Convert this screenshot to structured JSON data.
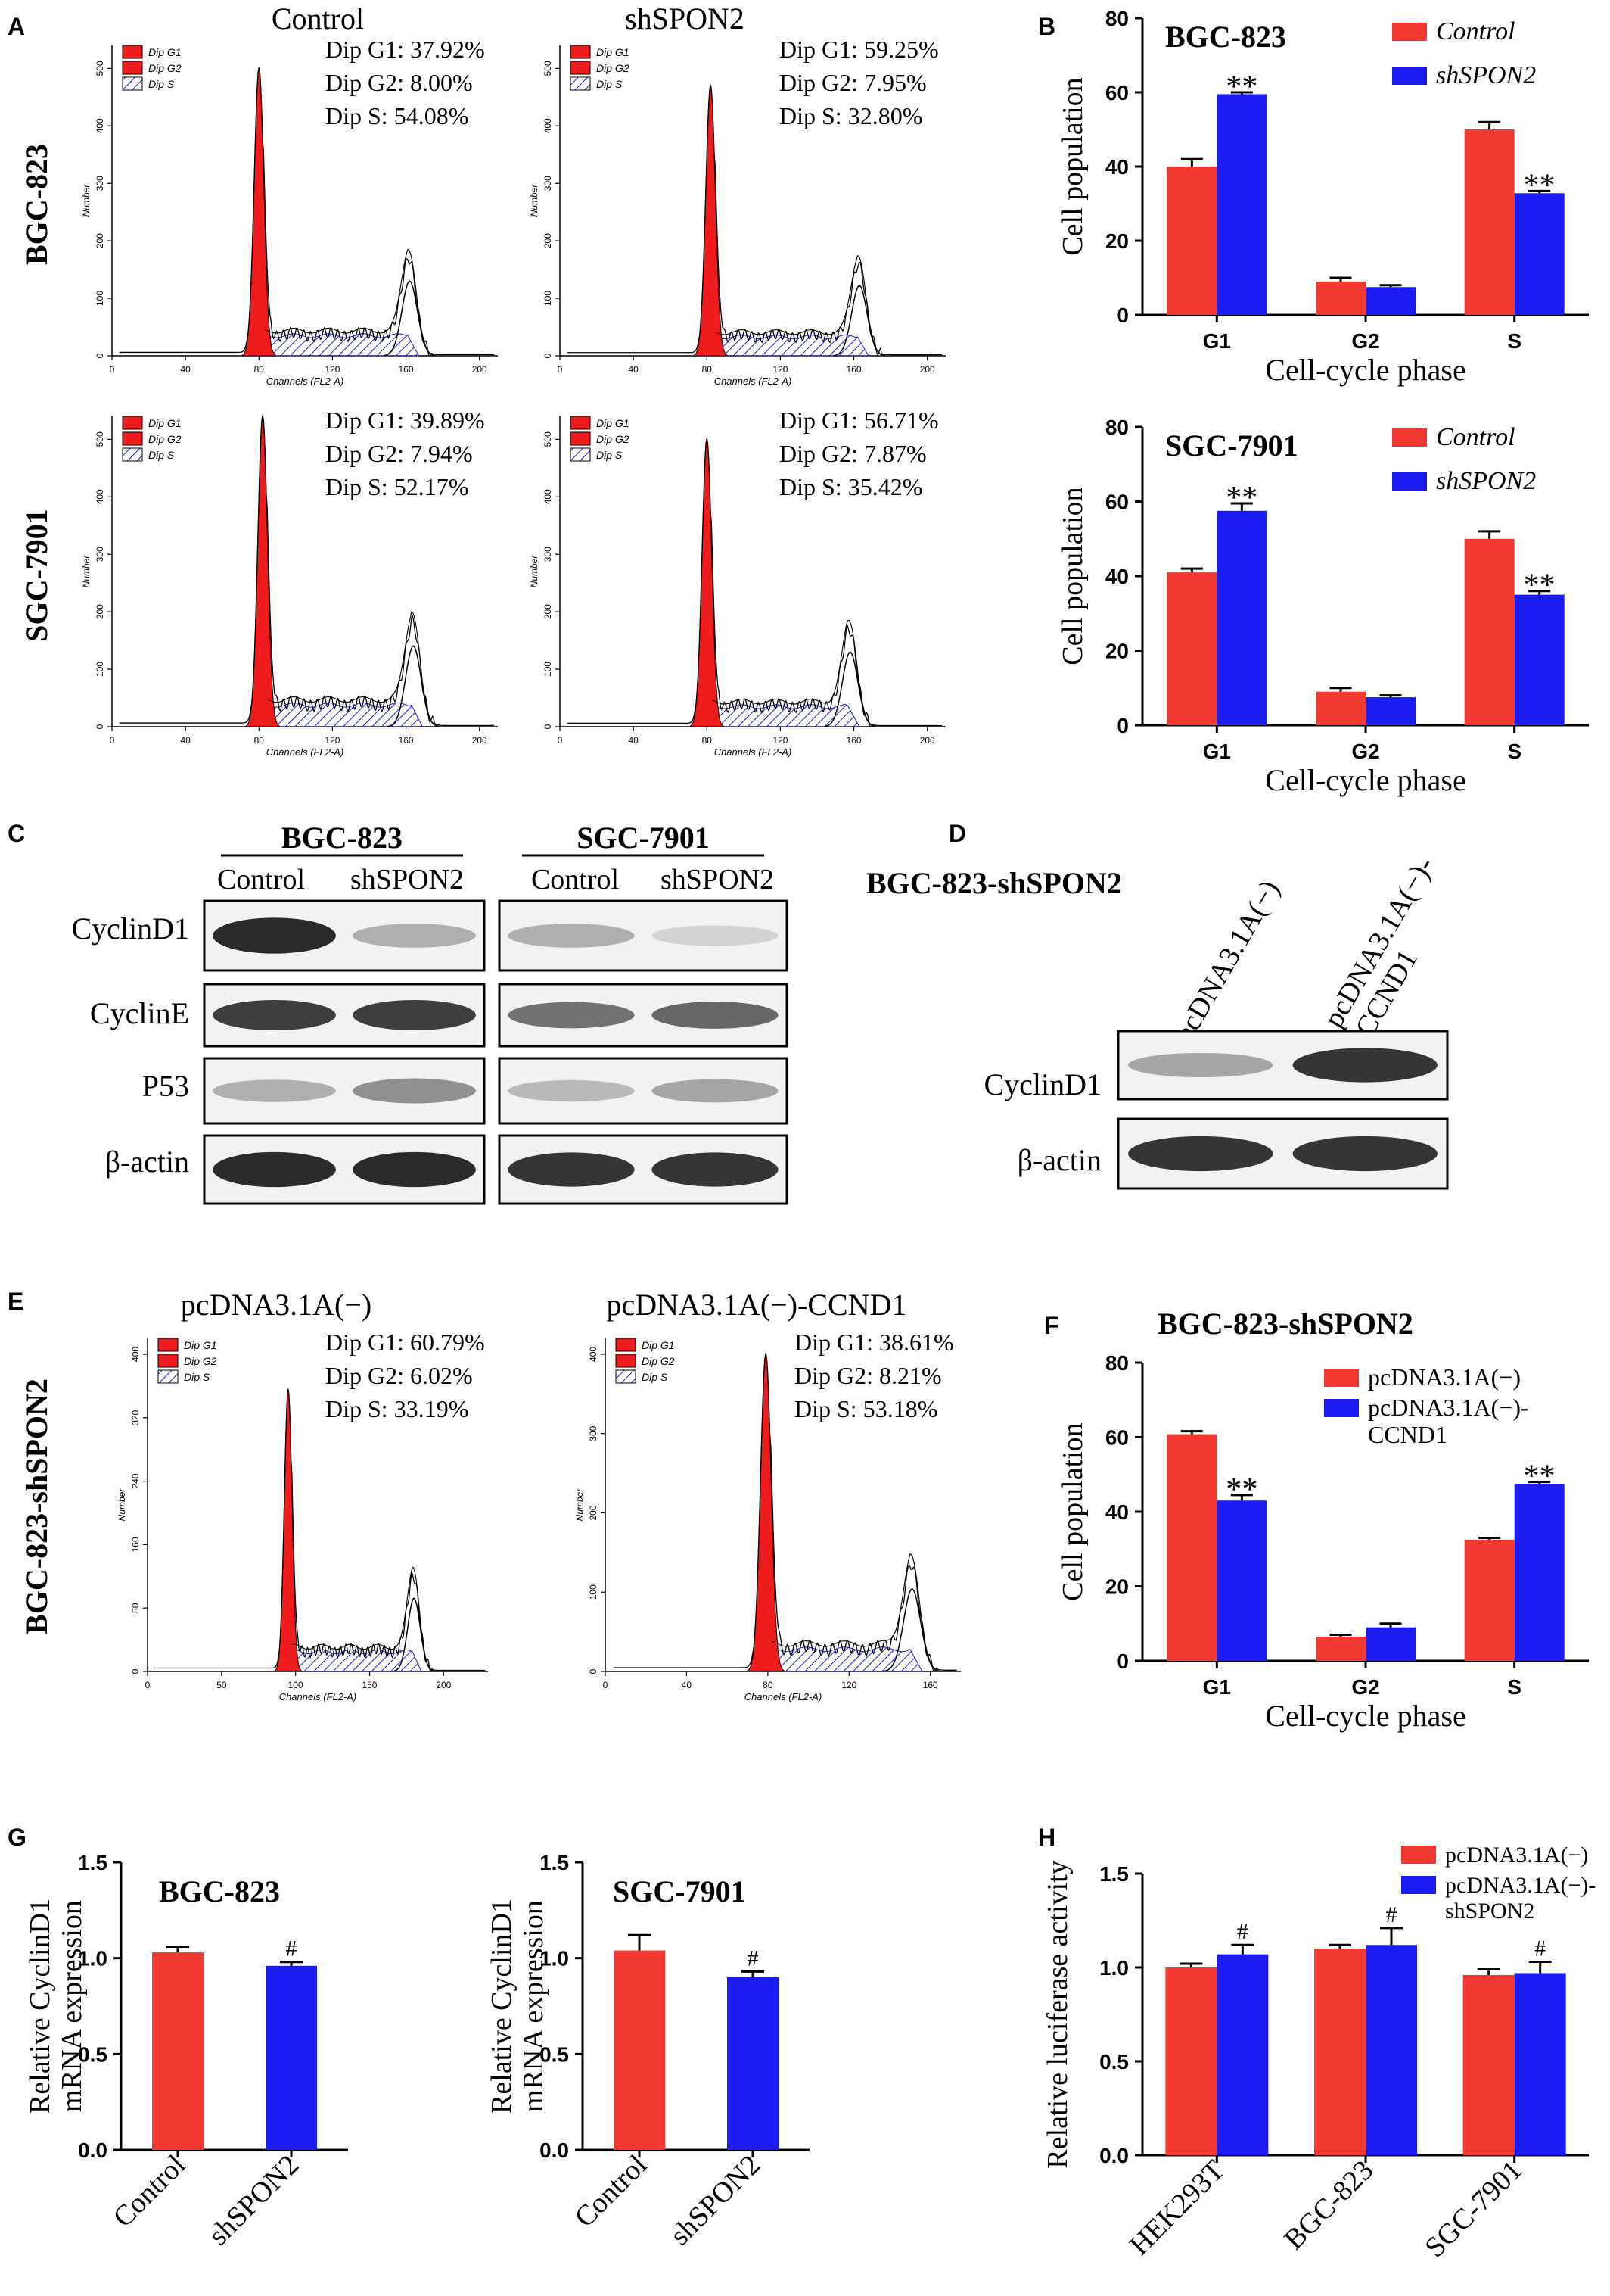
{
  "panel_letters": [
    "A",
    "B",
    "C",
    "D",
    "E",
    "F",
    "G",
    "H"
  ],
  "colors": {
    "red": "#f33a32",
    "blue": "#1b1bf2",
    "hist_red": "#ee1c1c",
    "hatch": "#1a1ad8",
    "legend_text": "#2a2aff"
  },
  "panelA": {
    "col_labels": [
      "Control",
      "shSPON2"
    ],
    "row_labels": [
      "BGC-823",
      "SGC-7901"
    ],
    "x_label": "Channels (FL2-A)",
    "y_label": "Number",
    "legend": [
      "Dip G1",
      "Dip G2",
      "Dip S"
    ],
    "histograms": [
      {
        "stats": [
          "Dip G1: 37.92%",
          "Dip G2: 8.00%",
          "Dip S: 54.08%"
        ],
        "x_ticks": [
          "0",
          "40",
          "80",
          "120",
          "160",
          "200"
        ],
        "y_ticks": [
          "0",
          "100",
          "200",
          "300",
          "400",
          "500"
        ],
        "g1_peak": 80,
        "g2_peak": 162,
        "ymax": 540,
        "peak_height": 500
      },
      {
        "stats": [
          "Dip G1: 59.25%",
          "Dip G2: 7.95%",
          "Dip S: 32.80%"
        ],
        "x_ticks": [
          "0",
          "40",
          "80",
          "120",
          "160",
          "200"
        ],
        "y_ticks": [
          "0",
          "100",
          "200",
          "300",
          "400",
          "500"
        ],
        "g1_peak": 82,
        "g2_peak": 163,
        "ymax": 540,
        "peak_height": 470
      },
      {
        "stats": [
          "Dip G1: 39.89%",
          "Dip G2: 7.94%",
          "Dip S: 52.17%"
        ],
        "x_ticks": [
          "0",
          "40",
          "80",
          "120",
          "160",
          "200"
        ],
        "y_ticks": [
          "0",
          "100",
          "200",
          "300",
          "400",
          "500"
        ],
        "g1_peak": 82,
        "g2_peak": 164,
        "ymax": 540,
        "peak_height": 540
      },
      {
        "stats": [
          "Dip G1: 56.71%",
          "Dip G2: 7.87%",
          "Dip S: 35.42%"
        ],
        "x_ticks": [
          "0",
          "40",
          "80",
          "120",
          "160",
          "200"
        ],
        "y_ticks": [
          "0",
          "100",
          "200",
          "300",
          "400",
          "500"
        ],
        "g1_peak": 80,
        "g2_peak": 158,
        "ymax": 540,
        "peak_height": 500
      }
    ]
  },
  "chart_data": [
    {
      "id": "B1",
      "type": "bar",
      "title": "BGC-823",
      "categories": [
        "G1",
        "G2",
        "S"
      ],
      "series": [
        {
          "name": "Control",
          "values": [
            40,
            9,
            50
          ],
          "errors": [
            2,
            1,
            2
          ]
        },
        {
          "name": "shSPON2",
          "values": [
            59.5,
            7.5,
            32.8
          ],
          "errors": [
            0.5,
            0.5,
            0.6
          ]
        }
      ],
      "significance": [
        [
          "",
          "**"
        ],
        [
          "",
          ""
        ],
        [
          "",
          "**"
        ]
      ],
      "xlabel": "Cell-cycle phase",
      "ylabel": "Cell population",
      "ylim": [
        0,
        80
      ],
      "yticks": [
        "0",
        "20",
        "40",
        "60",
        "80"
      ],
      "legend": "top-right"
    },
    {
      "id": "B2",
      "type": "bar",
      "title": "SGC-7901",
      "categories": [
        "G1",
        "G2",
        "S"
      ],
      "series": [
        {
          "name": "Control",
          "values": [
            41,
            9,
            50
          ],
          "errors": [
            1,
            1,
            2
          ]
        },
        {
          "name": "shSPON2",
          "values": [
            57.5,
            7.5,
            35
          ],
          "errors": [
            2,
            0.5,
            1
          ]
        }
      ],
      "significance": [
        [
          "",
          "**"
        ],
        [
          "",
          ""
        ],
        [
          "",
          "**"
        ]
      ],
      "xlabel": "Cell-cycle phase",
      "ylabel": "Cell population",
      "ylim": [
        0,
        80
      ],
      "yticks": [
        "0",
        "20",
        "40",
        "60",
        "80"
      ],
      "legend": "top-right"
    },
    {
      "id": "F",
      "type": "bar",
      "title": "BGC-823-shSPON2",
      "categories": [
        "G1",
        "G2",
        "S"
      ],
      "series": [
        {
          "name": "pcDNA3.1A(−)",
          "values": [
            60.8,
            6.5,
            32.5
          ],
          "errors": [
            0.8,
            0.5,
            0.5
          ]
        },
        {
          "name": "pcDNA3.1A(−)-CCND1",
          "values": [
            43,
            9,
            47.5
          ],
          "errors": [
            1.5,
            1,
            0.5
          ]
        }
      ],
      "significance": [
        [
          "",
          "**"
        ],
        [
          "",
          ""
        ],
        [
          "",
          "**"
        ]
      ],
      "xlabel": "Cell-cycle phase",
      "ylabel": "Cell population",
      "ylim": [
        0,
        80
      ],
      "yticks": [
        "0",
        "20",
        "40",
        "60",
        "80"
      ],
      "legend": "top-right"
    },
    {
      "id": "G1",
      "type": "bar",
      "title": "BGC-823",
      "categories": [
        "Control",
        "shSPON2"
      ],
      "values": [
        1.03,
        0.96
      ],
      "errors": [
        0.03,
        0.02
      ],
      "significance": [
        "",
        "#"
      ],
      "xlabel": "",
      "ylabel": "Relative CyclinD1 mRNA expression",
      "ylim": [
        0,
        1.5
      ],
      "yticks": [
        "0.0",
        "0.5",
        "1.0",
        "1.5"
      ]
    },
    {
      "id": "G2",
      "type": "bar",
      "title": "SGC-7901",
      "categories": [
        "Control",
        "shSPON2"
      ],
      "values": [
        1.04,
        0.9
      ],
      "errors": [
        0.08,
        0.03
      ],
      "significance": [
        "",
        "#"
      ],
      "xlabel": "",
      "ylabel": "Relative CyclinD1 mRNA expression",
      "ylim": [
        0,
        1.5
      ],
      "yticks": [
        "0.0",
        "0.5",
        "1.0",
        "1.5"
      ]
    },
    {
      "id": "H",
      "type": "bar",
      "title": "",
      "categories": [
        "HEK293T",
        "BGC-823",
        "SGC-7901"
      ],
      "series": [
        {
          "name": "pcDNA3.1A(−)",
          "values": [
            1.0,
            1.1,
            0.96
          ],
          "errors": [
            0.02,
            0.02,
            0.03
          ]
        },
        {
          "name": "pcDNA3.1A(−)-shSPON2",
          "values": [
            1.07,
            1.12,
            0.97
          ],
          "errors": [
            0.05,
            0.09,
            0.06
          ]
        }
      ],
      "significance": [
        [
          "",
          "#"
        ],
        [
          "",
          "#"
        ],
        [
          "",
          "#"
        ]
      ],
      "xlabel": "",
      "ylabel": "Relative luciferase activity",
      "ylim": [
        0,
        1.5
      ],
      "yticks": [
        "0.0",
        "0.5",
        "1.0",
        "1.5"
      ],
      "legend": "top-right"
    }
  ],
  "panelC": {
    "groups": [
      "BGC-823",
      "SGC-7901"
    ],
    "lanes": [
      "Control",
      "shSPON2"
    ],
    "proteins": [
      "CyclinD1",
      "CyclinE",
      "P53",
      "β-actin"
    ],
    "intensity": [
      [
        [
          0.95,
          0.3
        ],
        [
          0.3,
          0.12
        ]
      ],
      [
        [
          0.85,
          0.85
        ],
        [
          0.6,
          0.65
        ]
      ],
      [
        [
          0.3,
          0.45
        ],
        [
          0.25,
          0.35
        ]
      ],
      [
        [
          0.95,
          0.95
        ],
        [
          0.9,
          0.9
        ]
      ]
    ]
  },
  "panelD": {
    "title": "BGC-823-shSPON2",
    "lanes": [
      "pcDNA3.1A(−)",
      "pcDNA3.1A(−)-",
      "CCND1"
    ],
    "proteins": [
      "CyclinD1",
      "β-actin"
    ],
    "intensity": [
      [
        0.35,
        0.9
      ],
      [
        0.9,
        0.9
      ]
    ]
  },
  "panelE": {
    "row_label": "BGC-823-shSPON2",
    "col_labels": [
      "pcDNA3.1A(−)",
      "pcDNA3.1A(−)-CCND1"
    ],
    "x_label": "Channels (FL2-A)",
    "y_label": "Number",
    "legend": [
      "Dip G1",
      "Dip G2",
      "Dip S"
    ],
    "histograms": [
      {
        "stats": [
          "Dip G1: 60.79%",
          "Dip G2: 6.02%",
          "Dip S: 33.19%"
        ],
        "x_ticks": [
          "0",
          "50",
          "100",
          "150",
          "200"
        ],
        "xmax": 230,
        "y_ticks": [
          "0",
          "80",
          "160",
          "240",
          "320",
          "400"
        ],
        "g1_peak": 95,
        "g2_peak": 180,
        "ymax": 420,
        "peak_height": 355
      },
      {
        "stats": [
          "Dip G1: 38.61%",
          "Dip G2: 8.21%",
          "Dip S: 53.18%"
        ],
        "x_ticks": [
          "0",
          "40",
          "80",
          "120",
          "160"
        ],
        "xmax": 175,
        "y_ticks": [
          "0",
          "100",
          "200",
          "300",
          "400"
        ],
        "g1_peak": 79,
        "g2_peak": 151,
        "ymax": 420,
        "peak_height": 400
      }
    ]
  }
}
